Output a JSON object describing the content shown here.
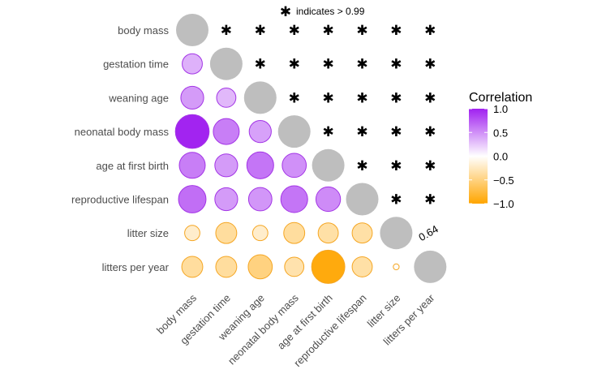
{
  "chart_data": {
    "type": "correlation-matrix",
    "note_symbol": "✱",
    "note": "indicates > 0.99",
    "variables": [
      "body mass",
      "gestation time",
      "weaning age",
      "neonatal body mass",
      "age at first birth",
      "reproductive lifespan",
      "litter size",
      "litters per year"
    ],
    "lower_triangle": [
      {
        "row": "gestation time",
        "col": "body mass",
        "value": 0.35
      },
      {
        "row": "weaning age",
        "col": "body mass",
        "value": 0.45
      },
      {
        "row": "weaning age",
        "col": "gestation time",
        "value": 0.32
      },
      {
        "row": "neonatal body mass",
        "col": "body mass",
        "value": 0.98
      },
      {
        "row": "neonatal body mass",
        "col": "gestation time",
        "value": 0.58
      },
      {
        "row": "neonatal body mass",
        "col": "weaning age",
        "value": 0.42
      },
      {
        "row": "age at first birth",
        "col": "body mass",
        "value": 0.58
      },
      {
        "row": "age at first birth",
        "col": "gestation time",
        "value": 0.45
      },
      {
        "row": "age at first birth",
        "col": "weaning age",
        "value": 0.62
      },
      {
        "row": "age at first birth",
        "col": "neonatal body mass",
        "value": 0.5
      },
      {
        "row": "reproductive lifespan",
        "col": "body mass",
        "value": 0.65
      },
      {
        "row": "reproductive lifespan",
        "col": "gestation time",
        "value": 0.45
      },
      {
        "row": "reproductive lifespan",
        "col": "weaning age",
        "value": 0.47
      },
      {
        "row": "reproductive lifespan",
        "col": "neonatal body mass",
        "value": 0.62
      },
      {
        "row": "reproductive lifespan",
        "col": "age at first birth",
        "value": 0.52
      },
      {
        "row": "litter size",
        "col": "body mass",
        "value": -0.2
      },
      {
        "row": "litter size",
        "col": "gestation time",
        "value": -0.38
      },
      {
        "row": "litter size",
        "col": "weaning age",
        "value": -0.2
      },
      {
        "row": "litter size",
        "col": "neonatal body mass",
        "value": -0.38
      },
      {
        "row": "litter size",
        "col": "age at first birth",
        "value": -0.35
      },
      {
        "row": "litter size",
        "col": "reproductive lifespan",
        "value": -0.35
      },
      {
        "row": "litters per year",
        "col": "body mass",
        "value": -0.38
      },
      {
        "row": "litters per year",
        "col": "gestation time",
        "value": -0.38
      },
      {
        "row": "litters per year",
        "col": "weaning age",
        "value": -0.5
      },
      {
        "row": "litters per year",
        "col": "neonatal body mass",
        "value": -0.32
      },
      {
        "row": "litters per year",
        "col": "age at first birth",
        "value": -0.95
      },
      {
        "row": "litters per year",
        "col": "reproductive lifespan",
        "value": -0.35
      },
      {
        "row": "litters per year",
        "col": "litter size",
        "value": -0.03
      }
    ],
    "upper_triangle": {
      "default_symbol": "✱",
      "meaning": "> 0.99",
      "exceptions": [
        {
          "row": "litter size",
          "col": "litters per year",
          "label": "0.64"
        }
      ]
    },
    "diagonal_color": "#bebebe",
    "legend": {
      "title": "Correlation",
      "ticks": [
        "1.0",
        "0.5",
        "0.0",
        "−0.5",
        "−1.0"
      ],
      "tick_values": [
        1,
        0.5,
        0,
        -0.5,
        -1
      ]
    },
    "colors": {
      "positive": "#a020f0",
      "neutral": "#ffffff",
      "negative": "#ffa500",
      "positive_stroke": "#a335e6",
      "negative_stroke": "#f5a623"
    }
  }
}
